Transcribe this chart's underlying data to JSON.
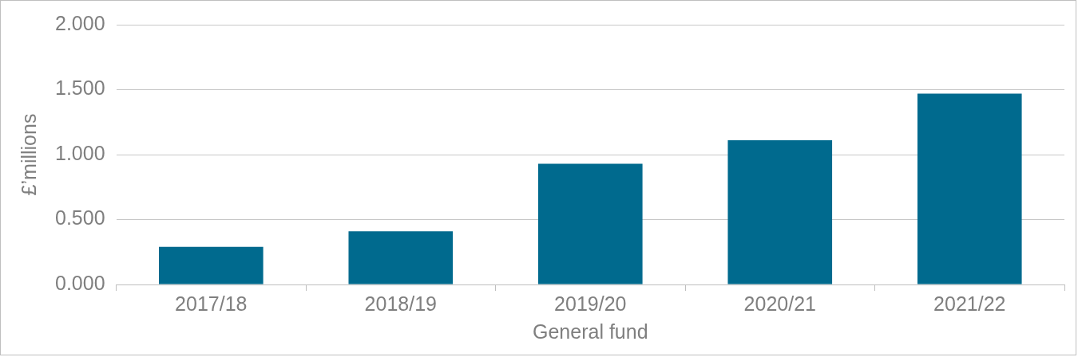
{
  "chart_data": {
    "type": "bar",
    "xlabel": "General fund",
    "ylabel": "£’millions",
    "categories": [
      "2017/18",
      "2018/19",
      "2019/20",
      "2020/21",
      "2021/22"
    ],
    "values": [
      0.29,
      0.41,
      0.93,
      1.11,
      1.47
    ],
    "color": "#006a8e",
    "ylim": [
      0,
      2
    ],
    "yticks": [
      {
        "value": 0,
        "label": "0.000"
      },
      {
        "value": 0.5,
        "label": "0.500"
      },
      {
        "value": 1,
        "label": "1.000"
      },
      {
        "value": 1.5,
        "label": "1.500"
      },
      {
        "value": 2,
        "label": "2.000"
      }
    ],
    "grid": "y"
  }
}
